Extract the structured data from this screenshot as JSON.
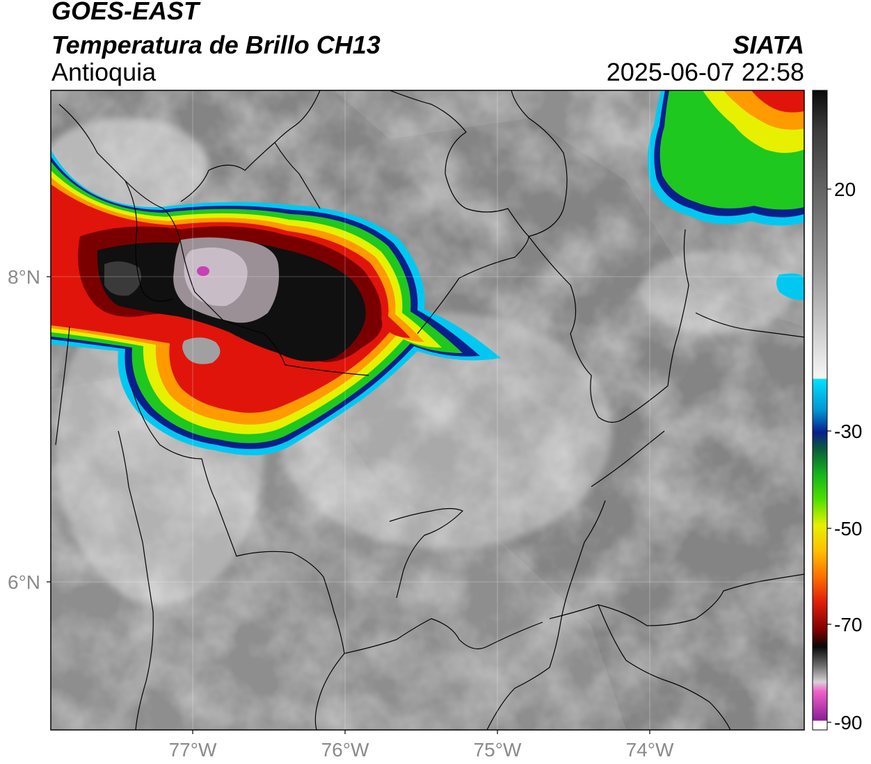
{
  "header": {
    "title_line1": "GOES-EAST",
    "title_line2": "Temperatura de Brillo CH13",
    "region": "Antioquia",
    "agency": "SIATA",
    "datetime": "2025-06-07 22:58"
  },
  "map": {
    "lon_ticks": [
      "77°W",
      "76°W",
      "75°W",
      "74°W"
    ],
    "lat_ticks": [
      "8°N",
      "6°N"
    ],
    "extent": {
      "lon_min": -77.93,
      "lon_max": -73.03,
      "lat_min": 5.05,
      "lat_max": 9.25
    }
  },
  "colorbar": {
    "tick_labels": [
      "20",
      "-30",
      "-50",
      "-70",
      "-90"
    ],
    "tick_values": [
      20,
      -30,
      -50,
      -70,
      -90
    ],
    "range": [
      -92,
      38
    ]
  },
  "colors": {
    "cold_top_black": "#0d0d0d",
    "red": "#e0140a",
    "orange": "#ff9a00",
    "yellow": "#f2f200",
    "green": "#1ec81e",
    "blue": "#0a1e8c",
    "cyan": "#00c8f0",
    "magenta": "#c840b4"
  }
}
